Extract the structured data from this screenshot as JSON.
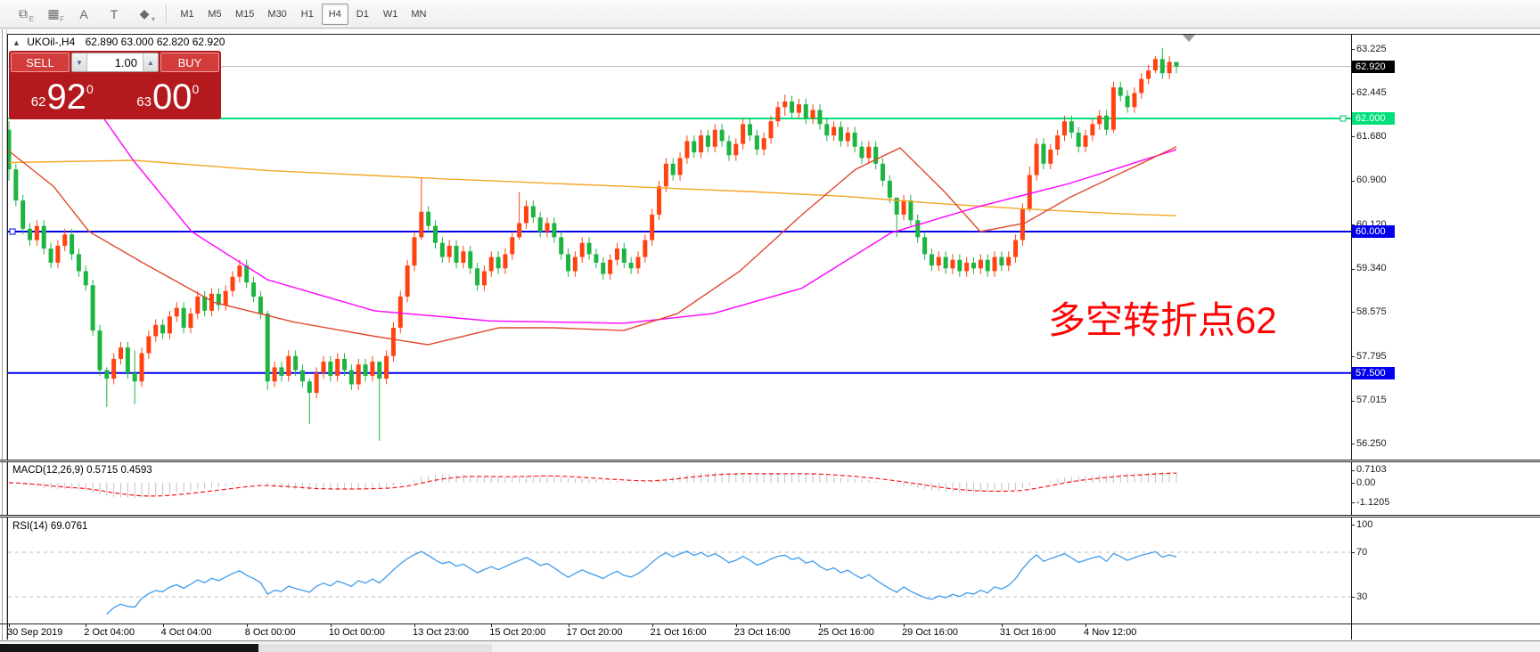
{
  "toolbar": {
    "icons": [
      {
        "name": "crosshair-tool-icon",
        "glyph": "⧉",
        "sub": "E"
      },
      {
        "name": "grid-tool-icon",
        "glyph": "▦",
        "sub": "F"
      },
      {
        "name": "text-label-icon",
        "glyph": "A",
        "sub": ""
      },
      {
        "name": "text-box-icon",
        "glyph": "T",
        "sub": ""
      },
      {
        "name": "shapes-dropdown-icon",
        "glyph": "◆",
        "sub": "▾"
      }
    ],
    "timeframes": [
      "M1",
      "M5",
      "M15",
      "M30",
      "H1",
      "H4",
      "D1",
      "W1",
      "MN"
    ],
    "active_timeframe": "H4"
  },
  "chart": {
    "collapse_icon": "▲",
    "symbol_period": "UKOil-,H4",
    "ohlc": "62.890 63.000 62.820 62.920"
  },
  "trade_panel": {
    "sell_label": "SELL",
    "buy_label": "BUY",
    "volume": "1.00",
    "spin_down": "▼",
    "spin_up": "▲",
    "sell_price_small": "62",
    "sell_price_big": "92",
    "sell_price_sup": "0",
    "buy_price_small": "63",
    "buy_price_big": "00",
    "buy_price_sup": "0"
  },
  "price_axis": {
    "ticks": [
      "63.225",
      "62.445",
      "61.680",
      "60.900",
      "60.120",
      "59.340",
      "58.575",
      "57.795",
      "57.015",
      "56.250"
    ],
    "current_price_badge": {
      "text": "62.920",
      "value": 62.92,
      "bg": "#000000"
    },
    "level_badges": [
      {
        "text": "62.000",
        "value": 62.0,
        "bg": "#00e07a"
      },
      {
        "text": "60.000",
        "value": 60.0,
        "bg": "#0000ee"
      },
      {
        "text": "57.500",
        "value": 57.5,
        "bg": "#0000ee"
      }
    ]
  },
  "macd_pane": {
    "label": "MACD(12,26,9) 0.5715 0.4593",
    "axis": [
      {
        "text": "0.7103",
        "value": 0.7103
      },
      {
        "text": "0.00",
        "value": 0.0
      },
      {
        "text": "-1.1205",
        "value": -1.1205
      }
    ]
  },
  "rsi_pane": {
    "label": "RSI(14) 69.0761",
    "axis": [
      {
        "text": "100",
        "value": 100
      },
      {
        "text": "70",
        "value": 70
      },
      {
        "text": "30",
        "value": 30
      }
    ],
    "dashed_levels": [
      70,
      30
    ]
  },
  "time_axis": {
    "labels": [
      "30 Sep 2019",
      "2 Oct 04:00",
      "4 Oct 04:00",
      "8 Oct 00:00",
      "10 Oct 00:00",
      "13 Oct 23:00",
      "15 Oct 20:00",
      "17 Oct 20:00",
      "21 Oct 16:00",
      "23 Oct 16:00",
      "25 Oct 16:00",
      "29 Oct 16:00",
      "31 Oct 16:00",
      "4 Nov 12:00"
    ],
    "bar_indices": [
      0,
      11,
      22,
      34,
      46,
      58,
      69,
      80,
      92,
      104,
      116,
      128,
      142,
      154
    ]
  },
  "annotation": {
    "text": "多空转折点62",
    "color": "#fe0505"
  },
  "chart_data": {
    "type": "candlestick",
    "symbol": "UKOil-",
    "period": "H4",
    "title": "UKOil-,H4 62.890 63.000 62.820 62.920",
    "ylim": [
      56.25,
      63.5
    ],
    "first_open": 61.8,
    "closes": [
      61.1,
      60.55,
      60.05,
      59.85,
      60.1,
      59.7,
      59.45,
      59.75,
      59.95,
      59.6,
      59.3,
      59.05,
      58.25,
      57.55,
      57.4,
      57.75,
      57.95,
      57.5,
      57.35,
      57.85,
      58.15,
      58.35,
      58.2,
      58.5,
      58.65,
      58.3,
      58.55,
      58.85,
      58.6,
      58.9,
      58.7,
      58.95,
      59.2,
      59.4,
      59.1,
      58.85,
      58.55,
      57.35,
      57.6,
      57.45,
      57.8,
      57.55,
      57.35,
      57.15,
      57.5,
      57.7,
      57.45,
      57.75,
      57.55,
      57.3,
      57.65,
      57.45,
      57.7,
      57.4,
      57.8,
      58.3,
      58.85,
      59.4,
      59.9,
      60.35,
      60.1,
      59.8,
      59.55,
      59.75,
      59.45,
      59.65,
      59.35,
      59.05,
      59.3,
      59.55,
      59.35,
      59.6,
      59.9,
      60.15,
      60.45,
      60.25,
      60.0,
      60.15,
      59.9,
      59.6,
      59.3,
      59.55,
      59.8,
      59.6,
      59.45,
      59.25,
      59.5,
      59.7,
      59.45,
      59.35,
      59.55,
      59.85,
      60.3,
      60.8,
      61.2,
      61.0,
      61.3,
      61.6,
      61.4,
      61.7,
      61.5,
      61.8,
      61.6,
      61.35,
      61.55,
      61.9,
      61.7,
      61.45,
      61.65,
      61.95,
      62.2,
      62.3,
      62.1,
      62.25,
      62.0,
      62.15,
      61.9,
      61.7,
      61.85,
      61.6,
      61.75,
      61.5,
      61.3,
      61.5,
      61.2,
      60.9,
      60.6,
      60.3,
      60.55,
      60.2,
      59.9,
      59.6,
      59.4,
      59.55,
      59.35,
      59.5,
      59.3,
      59.45,
      59.35,
      59.5,
      59.3,
      59.55,
      59.4,
      59.55,
      59.85,
      60.4,
      61.0,
      61.55,
      61.2,
      61.45,
      61.7,
      61.95,
      61.75,
      61.5,
      61.7,
      61.9,
      62.05,
      61.8,
      62.55,
      62.4,
      62.2,
      62.45,
      62.7,
      62.85,
      63.05,
      62.8,
      63.0,
      62.92
    ],
    "wick_overrides": {
      "0": [
        61.95,
        60.9
      ],
      "14": [
        57.6,
        56.9
      ],
      "18": [
        57.9,
        56.95
      ],
      "37": [
        58.6,
        57.2
      ],
      "43": [
        57.4,
        56.6
      ],
      "53": [
        57.6,
        56.3
      ],
      "59": [
        60.95,
        59.85
      ],
      "73": [
        60.7,
        59.85
      ],
      "111": [
        62.42,
        62.05
      ],
      "127": [
        60.55,
        59.9
      ],
      "146": [
        61.15,
        60.35
      ],
      "158": [
        62.65,
        61.75
      ],
      "164": [
        63.1,
        62.8
      ],
      "165": [
        63.25,
        62.7
      ],
      "167": [
        63.0,
        62.8
      ]
    },
    "horizontal_lines": [
      {
        "price": 62.0,
        "color": "#00e07a"
      },
      {
        "price": 60.0,
        "color": "#0000ee"
      },
      {
        "price": 57.5,
        "color": "#0000ee"
      }
    ],
    "moving_averages": [
      {
        "name": "ma-orange",
        "color": "#f5a623",
        "points": [
          [
            10,
            61.22
          ],
          [
            150,
            61.26
          ],
          [
            300,
            61.08
          ],
          [
            500,
            60.93
          ],
          [
            700,
            60.8
          ],
          [
            850,
            60.7
          ],
          [
            950,
            60.62
          ],
          [
            1050,
            60.5
          ],
          [
            1150,
            60.4
          ],
          [
            1250,
            60.32
          ],
          [
            1320,
            60.28
          ]
        ]
      },
      {
        "name": "ma-magenta",
        "color": "#ff00ff",
        "points": [
          [
            85,
            62.7
          ],
          [
            150,
            61.25
          ],
          [
            215,
            60.0
          ],
          [
            300,
            59.15
          ],
          [
            420,
            58.6
          ],
          [
            550,
            58.42
          ],
          [
            700,
            58.38
          ],
          [
            800,
            58.55
          ],
          [
            900,
            59.0
          ],
          [
            1000,
            59.98
          ],
          [
            1100,
            60.45
          ],
          [
            1200,
            60.85
          ],
          [
            1320,
            61.45
          ]
        ]
      },
      {
        "name": "ma-red",
        "color": "#e0492e",
        "points": [
          [
            0,
            61.55
          ],
          [
            60,
            60.8
          ],
          [
            100,
            60.0
          ],
          [
            160,
            59.45
          ],
          [
            240,
            58.75
          ],
          [
            330,
            58.4
          ],
          [
            420,
            58.15
          ],
          [
            480,
            58.0
          ],
          [
            560,
            58.3
          ],
          [
            620,
            58.3
          ],
          [
            700,
            58.25
          ],
          [
            760,
            58.55
          ],
          [
            830,
            59.3
          ],
          [
            900,
            60.3
          ],
          [
            960,
            61.1
          ],
          [
            1010,
            61.48
          ],
          [
            1060,
            60.7
          ],
          [
            1100,
            60.0
          ],
          [
            1150,
            60.15
          ],
          [
            1200,
            60.6
          ],
          [
            1260,
            61.05
          ],
          [
            1320,
            61.5
          ]
        ]
      }
    ],
    "indicators": [
      {
        "name": "MACD",
        "params": "12,26,9",
        "values_shown": [
          "0.5715",
          "0.4593"
        ]
      },
      {
        "name": "RSI",
        "params": "14",
        "values_shown": [
          "69.0761"
        ]
      }
    ],
    "colors": {
      "up_candle": "#ff4212",
      "down_candle": "#1db442",
      "macd_hist": "#c2c2c2",
      "macd_signal": "#ff1414",
      "rsi_line": "#3e9bec",
      "current_price_line": "#b4b4b4"
    }
  }
}
